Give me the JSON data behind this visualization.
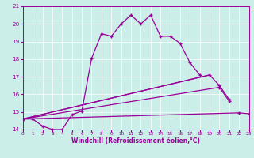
{
  "bg_color": "#cceee8",
  "line_color": "#990099",
  "xmin": 0,
  "xmax": 23,
  "ymin": 14,
  "ymax": 21,
  "xlabel": "Windchill (Refroidissement éolien,°C)",
  "line1_x": [
    0,
    1,
    2,
    3,
    4,
    5,
    6,
    7,
    8,
    9,
    10,
    11,
    12,
    13,
    14,
    15,
    16,
    17,
    18
  ],
  "line1_y": [
    14.6,
    14.6,
    14.2,
    14.0,
    14.0,
    14.85,
    15.05,
    18.05,
    19.45,
    19.3,
    20.0,
    20.5,
    20.0,
    20.5,
    19.3,
    19.3,
    18.9,
    17.8,
    17.1
  ],
  "line2_x": [
    0,
    19,
    20,
    21
  ],
  "line2_y": [
    14.6,
    17.1,
    16.5,
    15.7
  ],
  "line3_x": [
    0,
    20,
    21
  ],
  "line3_y": [
    14.6,
    16.4,
    15.6
  ],
  "line4_x": [
    0,
    22,
    23
  ],
  "line4_y": [
    14.6,
    14.95,
    14.9
  ],
  "yticks": [
    14,
    15,
    16,
    17,
    18,
    19,
    20,
    21
  ],
  "xticks": [
    0,
    1,
    2,
    3,
    4,
    5,
    6,
    7,
    8,
    9,
    10,
    11,
    12,
    13,
    14,
    15,
    16,
    17,
    18,
    19,
    20,
    21,
    22,
    23
  ]
}
